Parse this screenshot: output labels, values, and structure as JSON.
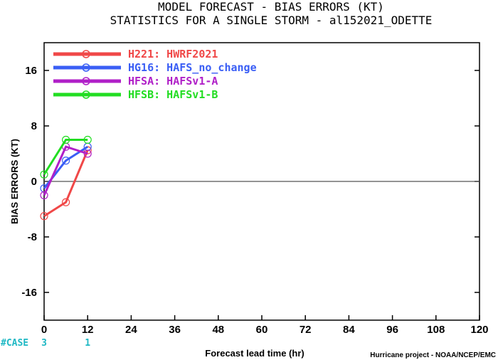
{
  "chart_data": {
    "type": "line",
    "title": "MODEL FORECAST - BIAS ERRORS (KT)",
    "subtitle": "STATISTICS FOR A SINGLE STORM - al152021_ODETTE",
    "xlabel": "Forecast lead time (hr)",
    "ylabel": "BIAS ERRORS (KT)",
    "credit": "Hurricane project - NOAA/NCEP/EMC",
    "xlim": [
      0,
      120
    ],
    "ylim": [
      -20,
      20
    ],
    "xticks": [
      0,
      12,
      24,
      36,
      48,
      60,
      72,
      84,
      96,
      108,
      120
    ],
    "yticks": [
      -16,
      -8,
      0,
      8,
      16
    ],
    "zero_line": true,
    "legend_position": "top-left",
    "case_label": "#CASE",
    "case_counts": [
      {
        "x": 0,
        "n": 3
      },
      {
        "x": 12,
        "n": 1
      }
    ],
    "series": [
      {
        "name": "H221: HWRF2021",
        "color": "#f04848",
        "x": [
          0,
          6,
          12
        ],
        "y": [
          -5,
          -3,
          4.5
        ]
      },
      {
        "name": "HG16: HAFS_no_change",
        "color": "#3a5ef5",
        "x": [
          0,
          6,
          12
        ],
        "y": [
          -1,
          3,
          5
        ]
      },
      {
        "name": "HFSA: HAFSv1-A",
        "color": "#b020c8",
        "x": [
          0,
          6,
          12
        ],
        "y": [
          -2,
          5,
          4
        ]
      },
      {
        "name": "HFSB: HAFSv1-B",
        "color": "#22dd22",
        "x": [
          0,
          6,
          12
        ],
        "y": [
          1,
          6,
          6
        ]
      }
    ]
  }
}
